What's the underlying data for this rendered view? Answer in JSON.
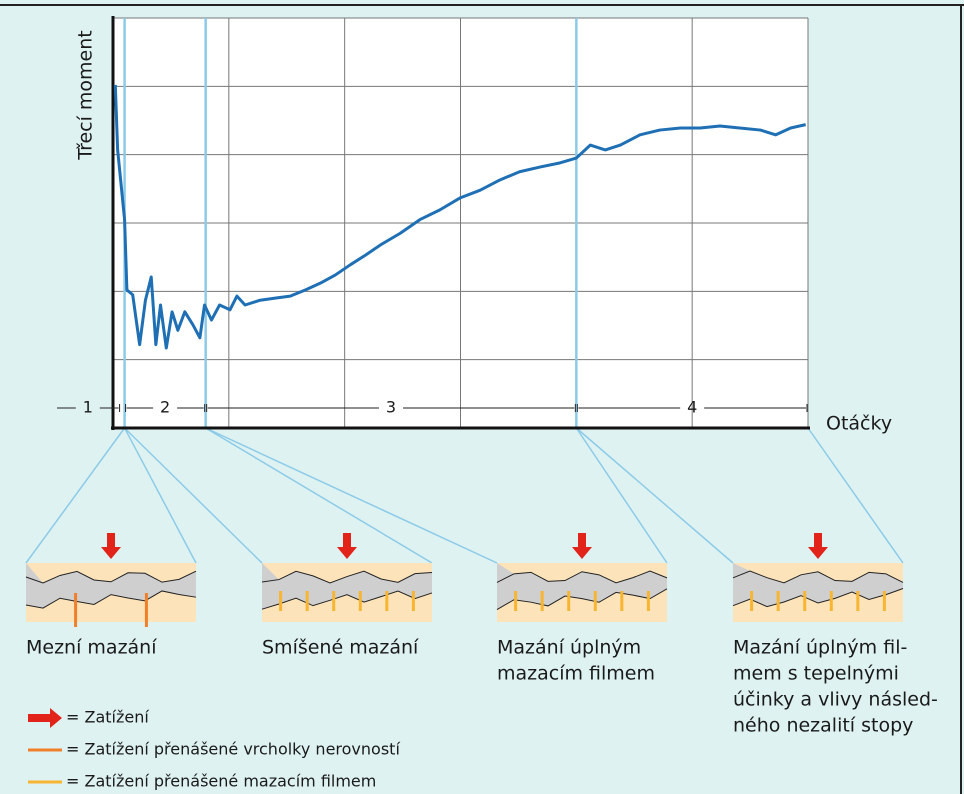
{
  "chart_data": {
    "type": "line",
    "ylabel": "Třecí moment",
    "xlabel": "Otáčky",
    "xlim": [
      0,
      6
    ],
    "ylim": [
      0,
      6
    ],
    "x": [
      0.02,
      0.04,
      0.1,
      0.12,
      0.17,
      0.23,
      0.28,
      0.33,
      0.37,
      0.41,
      0.46,
      0.51,
      0.56,
      0.62,
      0.69,
      0.75,
      0.79,
      0.85,
      0.92,
      1.01,
      1.07,
      1.14,
      1.27,
      1.4,
      1.53,
      1.66,
      1.79,
      1.92,
      2.05,
      2.18,
      2.31,
      2.48,
      2.65,
      2.82,
      3.0,
      3.17,
      3.34,
      3.51,
      3.69,
      3.86,
      4.0,
      4.12,
      4.25,
      4.38,
      4.55,
      4.72,
      4.9,
      5.07,
      5.24,
      5.41,
      5.59,
      5.72,
      5.85,
      5.98
    ],
    "series": [
      {
        "color": "#1f6fb5",
        "values": [
          5.02,
          4.07,
          3.05,
          2.02,
          1.95,
          1.22,
          1.87,
          2.21,
          1.22,
          1.8,
          1.17,
          1.7,
          1.43,
          1.7,
          1.51,
          1.32,
          1.8,
          1.58,
          1.8,
          1.73,
          1.93,
          1.8,
          1.87,
          1.9,
          1.93,
          2.02,
          2.12,
          2.24,
          2.39,
          2.53,
          2.68,
          2.85,
          3.05,
          3.19,
          3.37,
          3.48,
          3.63,
          3.75,
          3.82,
          3.88,
          3.95,
          4.14,
          4.07,
          4.14,
          4.29,
          4.36,
          4.39,
          4.39,
          4.42,
          4.39,
          4.36,
          4.29,
          4.39,
          4.44
        ]
      }
    ],
    "region_bounds": [
      0.1,
      0.8,
      4.0
    ],
    "regions": [
      "1",
      "2",
      "3",
      "4"
    ]
  },
  "panels": [
    {
      "caption": [
        "Mezní mazání"
      ]
    },
    {
      "caption": [
        "Smíšené mazání"
      ]
    },
    {
      "caption": [
        "Mazání úplným",
        "mazacím filmem"
      ]
    },
    {
      "caption": [
        "Mazání úplným fil-",
        "mem s tepelnými",
        "účinky a vlivy násled-",
        "ného nezalití stopy"
      ]
    }
  ],
  "legend": [
    "= Zatížení",
    "= Zatížení přenášené vrcholky nerovností",
    "= Zatížení přenášené mazacím filmem"
  ]
}
